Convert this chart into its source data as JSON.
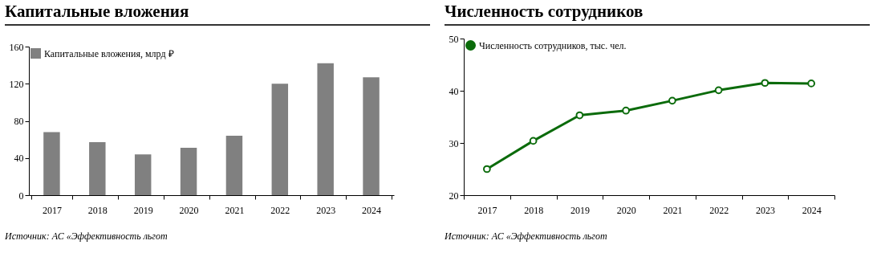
{
  "chart_data": [
    {
      "type": "bar",
      "title": "Капитальные вложения",
      "categories": [
        "2017",
        "2018",
        "2019",
        "2020",
        "2021",
        "2022",
        "2023",
        "2024"
      ],
      "series": [
        {
          "name": "Капитальные вложения, млрд ₽",
          "color": "#808080",
          "values": [
            68,
            57,
            44,
            51,
            64,
            120,
            142,
            127
          ]
        }
      ],
      "ylim": [
        0,
        160
      ],
      "yticks": [
        0,
        40,
        80,
        120,
        160
      ],
      "legend": "top left",
      "annotations": [
        "Источник: АС «Эффективность льгот"
      ]
    },
    {
      "type": "line",
      "title": "Численность сотрудников",
      "categories": [
        "2017",
        "2018",
        "2019",
        "2020",
        "2021",
        "2022",
        "2023",
        "2024"
      ],
      "series": [
        {
          "name": "Численность сотрудников, тыс. чел.",
          "color": "#0b6b0b",
          "values": [
            25,
            30.4,
            35.3,
            36.2,
            38.1,
            40.1,
            41.5,
            41.4
          ]
        }
      ],
      "ylim": [
        20,
        50
      ],
      "yticks": [
        20,
        30,
        40,
        50
      ],
      "legend": "top left",
      "marker": "circle",
      "annotations": [
        "Источник: АС «Эффективность льгот"
      ]
    }
  ]
}
